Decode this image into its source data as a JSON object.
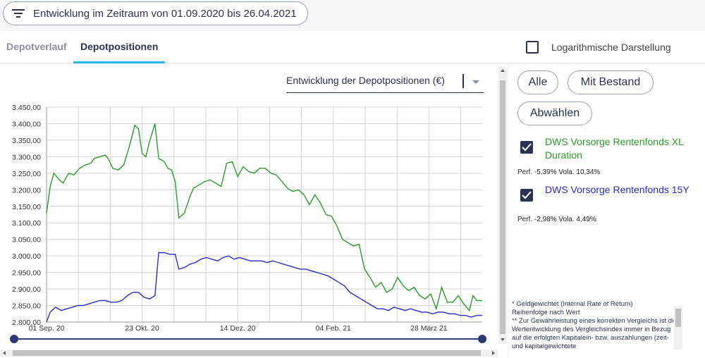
{
  "header": {
    "filter_label": "Entwicklung im Zeitraum von 01.09.2020 bis 26.04.2021"
  },
  "tabs": [
    {
      "label": "Depotverlauf",
      "active": false
    },
    {
      "label": "Depotpositionen",
      "active": true
    }
  ],
  "log_toggle": {
    "label": "Logarithmische Darstellung",
    "checked": false
  },
  "chart_select": {
    "value": "Entwicklung der Depotpositionen (€)"
  },
  "buttons": {
    "all": "Alle",
    "with_stock": "Mit Bestand",
    "deselect": "Abwählen"
  },
  "positions": [
    {
      "name": "DWS Vorsorge Rentenfonds XL Duration",
      "perf": "Perf. -5,39% Vola. 10,34%",
      "color": "#2e9a2e",
      "checked": true
    },
    {
      "name": "DWS Vorsorge Rentenfonds 15Y",
      "perf": "Perf. -2,98% Vola. 4,49%",
      "color": "#2a2ad8",
      "checked": true
    }
  ],
  "footnotes": [
    "* Geldgewichtet (Internal Rate of Return)",
    "Reihenfolge nach Wert",
    "** Zur Gewährleistung eines korrekten Vergleichs ist die Wertentwicklung des Vergleichsindex immer in Bezug auf die erfolgten Kapitalein- bzw. auszahlungen (zeit- und kapitalgewichtete"
  ],
  "chart_data": {
    "type": "line",
    "ylim": [
      2800,
      3450
    ],
    "y_ticks": [
      3450,
      3400,
      3350,
      3300,
      3250,
      3200,
      3150,
      3100,
      3050,
      3000,
      2950,
      2900,
      2850,
      2800
    ],
    "y_tick_labels": [
      "3.450,00",
      "3.400,00",
      "3.350,00",
      "3.300,00",
      "3.250,00",
      "3.200,00",
      "3.150,00",
      "3.100,00",
      "3.050,00",
      "3.000,00",
      "2.950,00",
      "2.900,00",
      "2.850,00",
      "2.800,00"
    ],
    "xlim": [
      "2020-09-01",
      "2021-04-26"
    ],
    "x_ticks": [
      {
        "date": "2020-09-01",
        "label": "01 Sep. 20"
      },
      {
        "date": "2020-10-23",
        "label": "23 Okt. 20"
      },
      {
        "date": "2020-12-14",
        "label": "14 Dez. 20"
      },
      {
        "date": "2021-02-04",
        "label": "04 Feb. 21"
      },
      {
        "date": "2021-03-28",
        "label": "28 März 21"
      }
    ],
    "grid": true,
    "series": [
      {
        "name": "DWS Vorsorge Rentenfonds XL Duration",
        "color": "#2e9a2e",
        "points": [
          [
            "2020-09-01",
            3130
          ],
          [
            "2020-09-03",
            3210
          ],
          [
            "2020-09-05",
            3250
          ],
          [
            "2020-09-08",
            3230
          ],
          [
            "2020-09-10",
            3220
          ],
          [
            "2020-09-13",
            3250
          ],
          [
            "2020-09-16",
            3245
          ],
          [
            "2020-09-19",
            3265
          ],
          [
            "2020-09-22",
            3275
          ],
          [
            "2020-09-25",
            3280
          ],
          [
            "2020-09-27",
            3295
          ],
          [
            "2020-09-30",
            3300
          ],
          [
            "2020-10-03",
            3305
          ],
          [
            "2020-10-05",
            3290
          ],
          [
            "2020-10-07",
            3265
          ],
          [
            "2020-10-10",
            3260
          ],
          [
            "2020-10-13",
            3275
          ],
          [
            "2020-10-16",
            3330
          ],
          [
            "2020-10-19",
            3395
          ],
          [
            "2020-10-21",
            3385
          ],
          [
            "2020-10-23",
            3310
          ],
          [
            "2020-10-25",
            3300
          ],
          [
            "2020-10-27",
            3345
          ],
          [
            "2020-10-30",
            3400
          ],
          [
            "2020-11-01",
            3295
          ],
          [
            "2020-11-04",
            3285
          ],
          [
            "2020-11-06",
            3265
          ],
          [
            "2020-11-08",
            3260
          ],
          [
            "2020-11-10",
            3225
          ],
          [
            "2020-11-12",
            3115
          ],
          [
            "2020-11-15",
            3130
          ],
          [
            "2020-11-18",
            3180
          ],
          [
            "2020-11-20",
            3205
          ],
          [
            "2020-11-23",
            3215
          ],
          [
            "2020-11-26",
            3225
          ],
          [
            "2020-11-29",
            3230
          ],
          [
            "2020-12-02",
            3220
          ],
          [
            "2020-12-05",
            3210
          ],
          [
            "2020-12-08",
            3280
          ],
          [
            "2020-12-11",
            3285
          ],
          [
            "2020-12-14",
            3240
          ],
          [
            "2020-12-17",
            3270
          ],
          [
            "2020-12-20",
            3255
          ],
          [
            "2020-12-23",
            3250
          ],
          [
            "2020-12-26",
            3265
          ],
          [
            "2020-12-29",
            3265
          ],
          [
            "2021-01-01",
            3250
          ],
          [
            "2021-01-04",
            3245
          ],
          [
            "2021-01-07",
            3225
          ],
          [
            "2021-01-10",
            3205
          ],
          [
            "2021-01-13",
            3195
          ],
          [
            "2021-01-16",
            3200
          ],
          [
            "2021-01-19",
            3185
          ],
          [
            "2021-01-22",
            3155
          ],
          [
            "2021-01-25",
            3185
          ],
          [
            "2021-01-28",
            3160
          ],
          [
            "2021-01-31",
            3125
          ],
          [
            "2021-02-03",
            3120
          ],
          [
            "2021-02-06",
            3090
          ],
          [
            "2021-02-09",
            3050
          ],
          [
            "2021-02-12",
            3040
          ],
          [
            "2021-02-15",
            3030
          ],
          [
            "2021-02-18",
            3035
          ],
          [
            "2021-02-21",
            2960
          ],
          [
            "2021-02-24",
            2935
          ],
          [
            "2021-02-27",
            2905
          ],
          [
            "2021-03-02",
            2920
          ],
          [
            "2021-03-05",
            2890
          ],
          [
            "2021-03-08",
            2900
          ],
          [
            "2021-03-11",
            2935
          ],
          [
            "2021-03-14",
            2910
          ],
          [
            "2021-03-17",
            2895
          ],
          [
            "2021-03-20",
            2905
          ],
          [
            "2021-03-23",
            2880
          ],
          [
            "2021-03-26",
            2870
          ],
          [
            "2021-03-29",
            2885
          ],
          [
            "2021-04-01",
            2840
          ],
          [
            "2021-04-04",
            2905
          ],
          [
            "2021-04-07",
            2860
          ],
          [
            "2021-04-10",
            2860
          ],
          [
            "2021-04-13",
            2880
          ],
          [
            "2021-04-16",
            2855
          ],
          [
            "2021-04-19",
            2835
          ],
          [
            "2021-04-21",
            2880
          ],
          [
            "2021-04-23",
            2865
          ],
          [
            "2021-04-26",
            2865
          ]
        ]
      },
      {
        "name": "DWS Vorsorge Rentenfonds 15Y",
        "color": "#2a2ad8",
        "points": [
          [
            "2020-09-01",
            2800
          ],
          [
            "2020-09-03",
            2830
          ],
          [
            "2020-09-06",
            2845
          ],
          [
            "2020-09-09",
            2835
          ],
          [
            "2020-09-12",
            2840
          ],
          [
            "2020-09-15",
            2845
          ],
          [
            "2020-09-18",
            2850
          ],
          [
            "2020-09-21",
            2850
          ],
          [
            "2020-09-24",
            2855
          ],
          [
            "2020-09-27",
            2860
          ],
          [
            "2020-09-30",
            2865
          ],
          [
            "2020-10-03",
            2865
          ],
          [
            "2020-10-06",
            2860
          ],
          [
            "2020-10-09",
            2860
          ],
          [
            "2020-10-12",
            2865
          ],
          [
            "2020-10-15",
            2880
          ],
          [
            "2020-10-18",
            2890
          ],
          [
            "2020-10-21",
            2890
          ],
          [
            "2020-10-24",
            2875
          ],
          [
            "2020-10-27",
            2870
          ],
          [
            "2020-10-30",
            2880
          ],
          [
            "2020-11-01",
            3010
          ],
          [
            "2020-11-04",
            3010
          ],
          [
            "2020-11-07",
            3005
          ],
          [
            "2020-11-10",
            3005
          ],
          [
            "2020-11-12",
            2960
          ],
          [
            "2020-11-15",
            2965
          ],
          [
            "2020-11-18",
            2975
          ],
          [
            "2020-11-21",
            2980
          ],
          [
            "2020-11-24",
            2990
          ],
          [
            "2020-11-27",
            2995
          ],
          [
            "2020-11-30",
            2990
          ],
          [
            "2020-12-03",
            2985
          ],
          [
            "2020-12-06",
            2995
          ],
          [
            "2020-12-09",
            3000
          ],
          [
            "2020-12-12",
            2990
          ],
          [
            "2020-12-15",
            2995
          ],
          [
            "2020-12-18",
            2990
          ],
          [
            "2020-12-21",
            2985
          ],
          [
            "2020-12-24",
            2985
          ],
          [
            "2020-12-27",
            2985
          ],
          [
            "2020-12-30",
            2980
          ],
          [
            "2021-01-02",
            2985
          ],
          [
            "2021-01-05",
            2980
          ],
          [
            "2021-01-08",
            2975
          ],
          [
            "2021-01-11",
            2970
          ],
          [
            "2021-01-14",
            2965
          ],
          [
            "2021-01-17",
            2960
          ],
          [
            "2021-01-20",
            2960
          ],
          [
            "2021-01-23",
            2955
          ],
          [
            "2021-01-26",
            2950
          ],
          [
            "2021-01-29",
            2945
          ],
          [
            "2021-02-01",
            2940
          ],
          [
            "2021-02-04",
            2930
          ],
          [
            "2021-02-07",
            2920
          ],
          [
            "2021-02-10",
            2910
          ],
          [
            "2021-02-13",
            2890
          ],
          [
            "2021-02-16",
            2880
          ],
          [
            "2021-02-19",
            2870
          ],
          [
            "2021-02-22",
            2860
          ],
          [
            "2021-02-25",
            2850
          ],
          [
            "2021-02-28",
            2840
          ],
          [
            "2021-03-03",
            2840
          ],
          [
            "2021-03-06",
            2835
          ],
          [
            "2021-03-09",
            2845
          ],
          [
            "2021-03-12",
            2840
          ],
          [
            "2021-03-15",
            2835
          ],
          [
            "2021-03-18",
            2840
          ],
          [
            "2021-03-21",
            2835
          ],
          [
            "2021-03-24",
            2830
          ],
          [
            "2021-03-27",
            2830
          ],
          [
            "2021-03-30",
            2825
          ],
          [
            "2021-04-02",
            2830
          ],
          [
            "2021-04-05",
            2830
          ],
          [
            "2021-04-08",
            2825
          ],
          [
            "2021-04-11",
            2825
          ],
          [
            "2021-04-14",
            2820
          ],
          [
            "2021-04-17",
            2820
          ],
          [
            "2021-04-20",
            2815
          ],
          [
            "2021-04-23",
            2820
          ],
          [
            "2021-04-26",
            2820
          ]
        ]
      }
    ]
  }
}
